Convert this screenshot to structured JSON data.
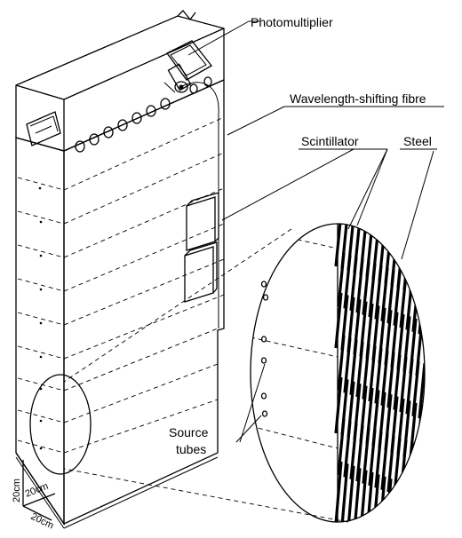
{
  "labels": {
    "photomultiplier": "Photomultiplier",
    "wavelength_fibre": "Wavelength-shifting fibre",
    "scintillator": "Scintillator",
    "steel": "Steel",
    "source_line1": "Source",
    "source_line2": "tubes"
  },
  "scale": {
    "vertical": "20cm",
    "depth": "20cm",
    "width": "20cm"
  },
  "colors": {
    "ink": "#000000",
    "background": "#ffffff"
  }
}
